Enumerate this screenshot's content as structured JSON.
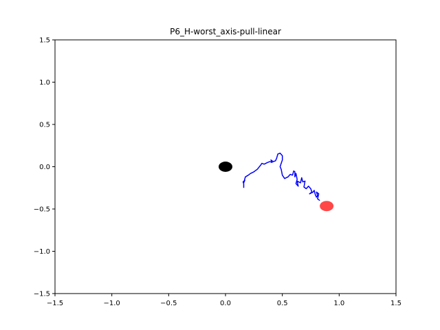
{
  "chart_data": {
    "type": "scatter",
    "title": "P6_H-worst_axis-pull-linear",
    "xlabel": "",
    "ylabel": "",
    "xlim": [
      -1.5,
      1.5
    ],
    "ylim": [
      -1.5,
      1.5
    ],
    "grid": false,
    "x_ticks": [
      -1.5,
      -1.0,
      -0.5,
      0.0,
      0.5,
      1.0,
      1.5
    ],
    "y_ticks": [
      -1.5,
      -1.0,
      -0.5,
      0.0,
      0.5,
      1.0,
      1.5
    ],
    "x_tick_labels": [
      "−1.5",
      "−1.0",
      "−0.5",
      "0.0",
      "0.5",
      "1.0",
      "1.5"
    ],
    "y_tick_labels": [
      "−1.5",
      "−1.0",
      "−0.5",
      "0.0",
      "0.5",
      "1.0",
      "1.5"
    ],
    "markers": [
      {
        "x": 0.0,
        "y": 0.0,
        "color": "#000000",
        "opacity": 1.0
      },
      {
        "x": 0.89,
        "y": -0.465,
        "color": "#ff0000",
        "opacity": 0.72
      }
    ],
    "trajectory": {
      "color": "#0000ff",
      "points": [
        [
          0.16,
          -0.25
        ],
        [
          0.16,
          -0.2
        ],
        [
          0.155,
          -0.18
        ],
        [
          0.17,
          -0.16
        ],
        [
          0.16,
          -0.19
        ],
        [
          0.175,
          -0.12
        ],
        [
          0.2,
          -0.1
        ],
        [
          0.22,
          -0.08
        ],
        [
          0.25,
          -0.06
        ],
        [
          0.28,
          -0.03
        ],
        [
          0.31,
          0.02
        ],
        [
          0.32,
          0.04
        ],
        [
          0.34,
          0.03
        ],
        [
          0.37,
          0.05
        ],
        [
          0.39,
          0.06
        ],
        [
          0.41,
          0.05
        ],
        [
          0.4,
          0.08
        ],
        [
          0.42,
          0.06
        ],
        [
          0.44,
          0.07
        ],
        [
          0.45,
          0.1
        ],
        [
          0.46,
          0.15
        ],
        [
          0.48,
          0.16
        ],
        [
          0.5,
          0.13
        ],
        [
          0.5,
          0.08
        ],
        [
          0.49,
          0.04
        ],
        [
          0.48,
          0.0
        ],
        [
          0.49,
          -0.03
        ],
        [
          0.5,
          -0.1
        ],
        [
          0.52,
          -0.14
        ],
        [
          0.55,
          -0.12
        ],
        [
          0.57,
          -0.09
        ],
        [
          0.59,
          -0.1
        ],
        [
          0.6,
          -0.05
        ],
        [
          0.61,
          -0.06
        ],
        [
          0.61,
          -0.12
        ],
        [
          0.62,
          -0.08
        ],
        [
          0.63,
          -0.15
        ],
        [
          0.62,
          -0.2
        ],
        [
          0.64,
          -0.23
        ],
        [
          0.63,
          -0.17
        ],
        [
          0.66,
          -0.19
        ],
        [
          0.67,
          -0.13
        ],
        [
          0.68,
          -0.18
        ],
        [
          0.7,
          -0.17
        ],
        [
          0.69,
          -0.24
        ],
        [
          0.71,
          -0.26
        ],
        [
          0.73,
          -0.23
        ],
        [
          0.75,
          -0.26
        ],
        [
          0.76,
          -0.3
        ],
        [
          0.74,
          -0.32
        ],
        [
          0.77,
          -0.3
        ],
        [
          0.78,
          -0.28
        ],
        [
          0.79,
          -0.33
        ],
        [
          0.8,
          -0.36
        ],
        [
          0.81,
          -0.34
        ],
        [
          0.8,
          -0.3
        ],
        [
          0.82,
          -0.32
        ],
        [
          0.81,
          -0.38
        ],
        [
          0.83,
          -0.4
        ]
      ]
    }
  }
}
